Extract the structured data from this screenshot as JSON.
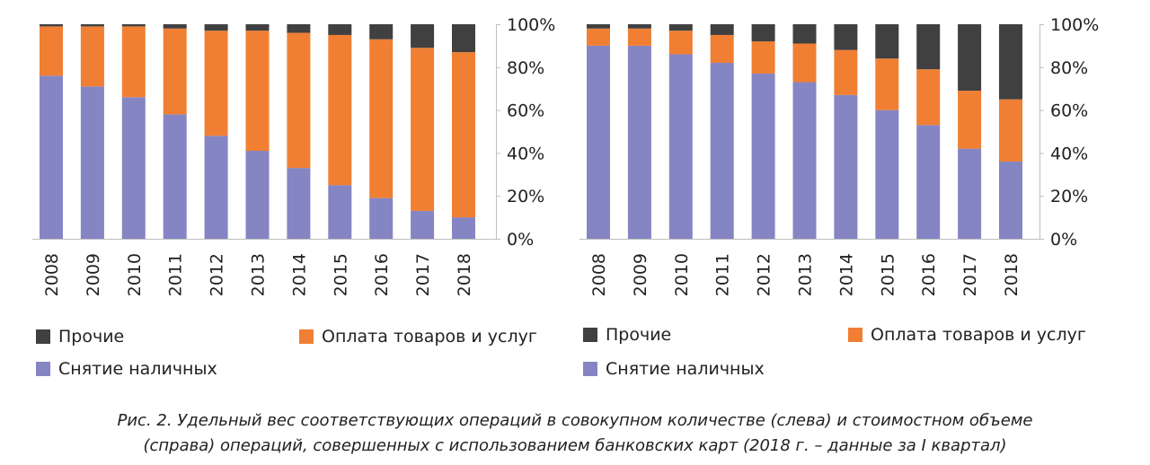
{
  "chart_data": [
    {
      "type": "bar",
      "stacked": true,
      "categories": [
        "2008",
        "2009",
        "2010",
        "2011",
        "2012",
        "2013",
        "2014",
        "2015",
        "2016",
        "2017",
        "2018"
      ],
      "series": [
        {
          "name": "Снятие наличных",
          "color": "#8585c4",
          "values": [
            76,
            71,
            66,
            58,
            48,
            41,
            33,
            25,
            19,
            13,
            10
          ]
        },
        {
          "name": "Оплата товаров и услуг",
          "color": "#f07f33",
          "values": [
            23,
            28,
            33,
            40,
            49,
            56,
            63,
            70,
            74,
            76,
            77
          ]
        },
        {
          "name": "Прочие",
          "color": "#404040",
          "values": [
            1,
            1,
            1,
            2,
            3,
            3,
            4,
            5,
            7,
            11,
            13
          ]
        }
      ],
      "yticks": [
        "0%",
        "20%",
        "40%",
        "60%",
        "80%",
        "100%"
      ],
      "ylim": [
        0,
        100
      ],
      "y_axis_side": "right"
    },
    {
      "type": "bar",
      "stacked": true,
      "categories": [
        "2008",
        "2009",
        "2010",
        "2011",
        "2012",
        "2013",
        "2014",
        "2015",
        "2016",
        "2017",
        "2018"
      ],
      "series": [
        {
          "name": "Снятие наличных",
          "color": "#8585c4",
          "values": [
            90,
            90,
            86,
            82,
            77,
            73,
            67,
            60,
            53,
            42,
            36
          ]
        },
        {
          "name": "Оплата товаров и услуг",
          "color": "#f07f33",
          "values": [
            8,
            8,
            11,
            13,
            15,
            18,
            21,
            24,
            26,
            27,
            29
          ]
        },
        {
          "name": "Прочие",
          "color": "#404040",
          "values": [
            2,
            2,
            3,
            5,
            8,
            9,
            12,
            16,
            21,
            31,
            35
          ]
        }
      ],
      "yticks": [
        "0%",
        "20%",
        "40%",
        "60%",
        "80%",
        "100%"
      ],
      "ylim": [
        0,
        100
      ],
      "y_axis_side": "right"
    }
  ],
  "legend_left": {
    "other": "Прочие",
    "payment": "Оплата товаров и услуг",
    "cash": "Снятие наличных"
  },
  "legend_right": {
    "other": "Прочие",
    "payment": "Оплата товаров и услуг",
    "cash": "Снятие наличных"
  },
  "caption": {
    "line1": "Рис. 2. Удельный вес соответствующих операций в совокупном количестве (слева) и стоимостном объеме",
    "line2": "(справа) операций, совершенных с использованием банковских карт (2018 г. – данные за I квартал)"
  },
  "colors": {
    "cash": "#8585c4",
    "payment": "#f07f33",
    "other": "#404040",
    "axis": "#bfbfbf"
  }
}
